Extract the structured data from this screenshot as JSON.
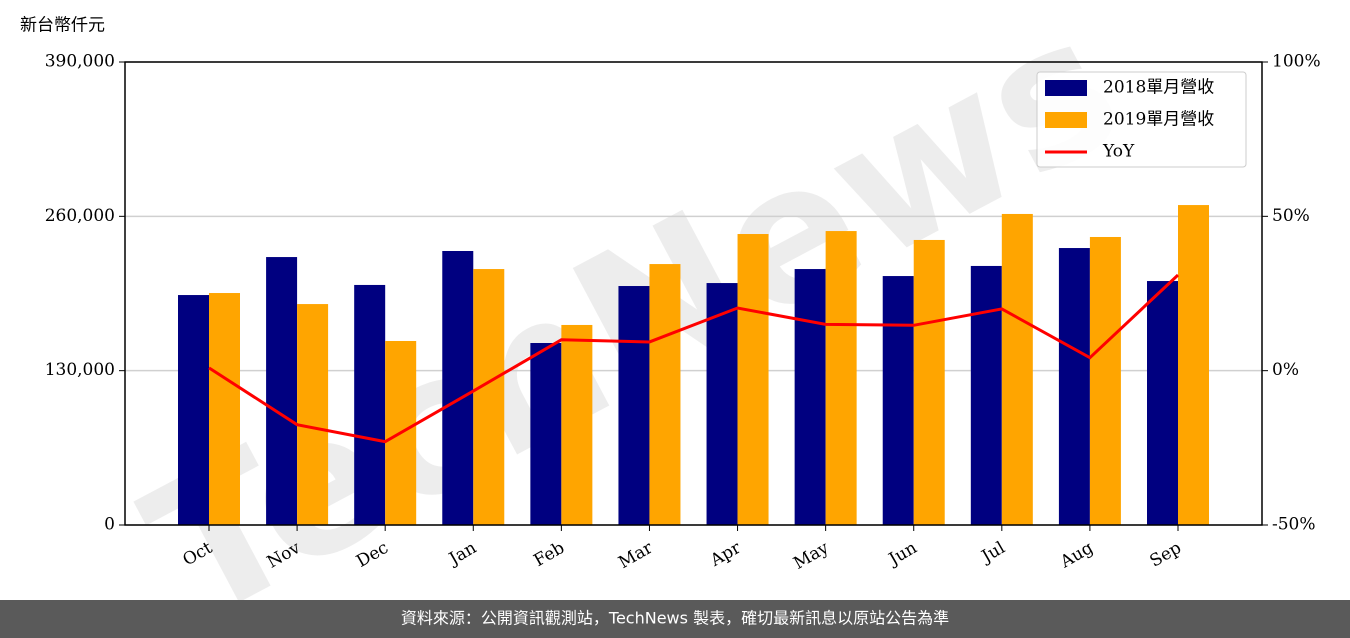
{
  "chart_data": {
    "type": "bar",
    "unit_label": "新台幣仟元",
    "watermark": "TechNews",
    "footer": "資料來源：公開資訊觀測站，TechNews 製表，確切最新訊息以原站公告為準",
    "categories": [
      "Oct",
      "Nov",
      "Dec",
      "Jan",
      "Feb",
      "Mar",
      "Apr",
      "May",
      "Jun",
      "Jul",
      "Aug",
      "Sep"
    ],
    "series": [
      {
        "name": "2018單月營收",
        "color": "#000080",
        "type": "bar",
        "values": [
          193700,
          225700,
          202200,
          230800,
          153300,
          201300,
          203800,
          215600,
          209700,
          218200,
          233300,
          205500
        ]
      },
      {
        "name": "2019單月營收",
        "color": "#ffa500",
        "type": "bar",
        "values": [
          195400,
          186100,
          155000,
          215600,
          168500,
          219800,
          245100,
          247600,
          240100,
          262000,
          242600,
          269500
        ]
      },
      {
        "name": "YoY",
        "color": "#ff0000",
        "type": "line",
        "axis": "y2",
        "values": [
          0.9,
          -17.5,
          -23,
          -6.6,
          10,
          9.3,
          20.3,
          15,
          14.7,
          20,
          4.2,
          31
        ]
      }
    ],
    "ylim": [
      0,
      390000
    ],
    "yticks": [
      0,
      {
        "value": 130000,
        "label": "130,000"
      },
      {
        "value": 260000,
        "label": "260,000"
      },
      {
        "value": 390000,
        "label": "390,000"
      }
    ],
    "y2lim": [
      -50,
      100
    ],
    "y2ticks": [
      {
        "value": -50,
        "label": "-50%"
      },
      {
        "value": 0,
        "label": "0%"
      },
      {
        "value": 50,
        "label": "50%"
      },
      {
        "value": 100,
        "label": "100%"
      }
    ],
    "grid": true,
    "legend": "upper right"
  }
}
